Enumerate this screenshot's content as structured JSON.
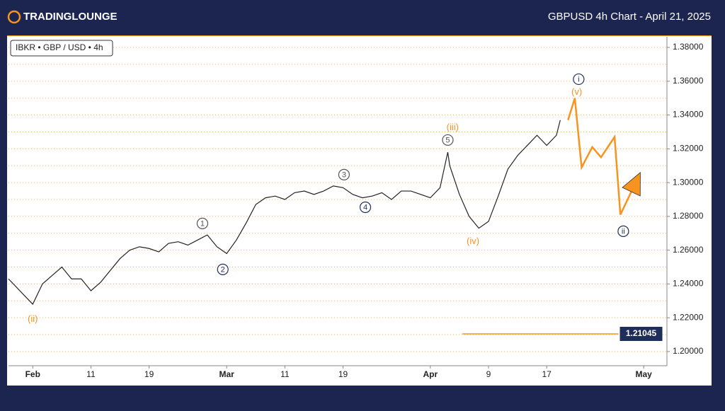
{
  "header": {
    "logo": "TRADINGLOUNGE",
    "title": "GBPUSD 4h Chart - April 21, 2025"
  },
  "chart_data": {
    "type": "line",
    "legend_text": "IBKR • GBP / USD • 4h",
    "xlim": [
      -2.5,
      65.4
    ],
    "ylim": [
      1.1916,
      1.3863
    ],
    "xticks": [
      {
        "value": 0,
        "label": "Feb"
      },
      {
        "value": 6,
        "label": "11"
      },
      {
        "value": 12,
        "label": "19"
      },
      {
        "value": 20,
        "label": "Mar"
      },
      {
        "value": 26,
        "label": "11"
      },
      {
        "value": 32,
        "label": "19"
      },
      {
        "value": 41,
        "label": "Apr"
      },
      {
        "value": 47,
        "label": "9"
      },
      {
        "value": 53,
        "label": "17"
      },
      {
        "value": 63,
        "label": "May"
      }
    ],
    "yticks": [
      {
        "value": 1.38,
        "label": "1.38000"
      },
      {
        "value": 1.36,
        "label": "1.36000"
      },
      {
        "value": 1.34,
        "label": "1.34000"
      },
      {
        "value": 1.32,
        "label": "1.32000"
      },
      {
        "value": 1.3,
        "label": "1.30000"
      },
      {
        "value": 1.28,
        "label": "1.28000"
      },
      {
        "value": 1.26,
        "label": "1.26000"
      },
      {
        "value": 1.24,
        "label": "1.24000"
      },
      {
        "value": 1.22,
        "label": "1.22000"
      },
      {
        "value": 1.2,
        "label": "1.20000"
      }
    ],
    "gridlines": [
      1.38,
      1.37,
      1.36,
      1.35,
      1.34,
      1.33,
      1.32,
      1.31,
      1.3,
      1.29,
      1.28,
      1.27,
      1.26,
      1.25,
      1.24,
      1.23,
      1.22,
      1.21,
      1.2
    ],
    "grid": true,
    "series": [
      {
        "name": "GBPUSD",
        "color": "#222222",
        "x": [
          -2.5,
          0,
          1,
          2,
          3,
          4,
          5,
          6,
          7,
          8,
          9,
          10,
          11,
          12,
          13,
          14,
          15,
          16,
          17,
          18,
          19,
          20,
          21,
          22,
          23,
          24,
          25,
          26,
          27,
          28,
          29,
          30,
          31,
          32,
          33,
          34,
          35,
          36,
          37,
          38,
          39,
          40,
          41,
          42,
          42.8,
          43,
          44,
          45,
          46,
          47,
          48,
          49,
          50,
          51,
          52,
          53,
          54,
          54.4
        ],
        "values": [
          1.243,
          1.228,
          1.24,
          1.245,
          1.25,
          1.243,
          1.243,
          1.236,
          1.241,
          1.248,
          1.255,
          1.26,
          1.262,
          1.261,
          1.259,
          1.264,
          1.265,
          1.263,
          1.266,
          1.269,
          1.262,
          1.258,
          1.266,
          1.276,
          1.287,
          1.291,
          1.292,
          1.29,
          1.294,
          1.295,
          1.293,
          1.295,
          1.298,
          1.297,
          1.293,
          1.291,
          1.292,
          1.294,
          1.29,
          1.295,
          1.295,
          1.293,
          1.291,
          1.297,
          1.318,
          1.31,
          1.293,
          1.28,
          1.273,
          1.277,
          1.292,
          1.308,
          1.316,
          1.322,
          1.328,
          1.322,
          1.328,
          1.337
        ]
      },
      {
        "name": "projection",
        "color": "#f7931e",
        "x": [
          55.2,
          55.9,
          56.6,
          57.7,
          58.6,
          60.0,
          60.6
        ],
        "values": [
          1.337,
          1.35,
          1.309,
          1.321,
          1.315,
          1.327,
          1.281
        ]
      }
    ],
    "arrow": {
      "x": [
        60.6,
        62.0
      ],
      "values": [
        1.281,
        1.298
      ],
      "color": "#f7931e"
    },
    "level": {
      "value": 1.21045,
      "label": "1.21045",
      "x": [
        44.3,
        60.4
      ],
      "color": "#f7931e"
    },
    "annotations": [
      {
        "text": "(ii)",
        "x": 0,
        "y": 1.2193,
        "color": "#f7931e",
        "circle": false
      },
      {
        "text": "1",
        "x": 17.5,
        "y": 1.2758,
        "color": "#555555",
        "circle": true
      },
      {
        "text": "2",
        "x": 19.6,
        "y": 1.2486,
        "color": "#1f2d5a",
        "circle": true
      },
      {
        "text": "3",
        "x": 32.1,
        "y": 1.3047,
        "color": "#555555",
        "circle": true
      },
      {
        "text": "4",
        "x": 34.3,
        "y": 1.2854,
        "color": "#1f2d5a",
        "circle": true
      },
      {
        "text": "5",
        "x": 42.8,
        "y": 1.3252,
        "color": "#555555",
        "circle": true
      },
      {
        "text": "(iii)",
        "x": 43.3,
        "y": 1.3327,
        "color": "#f7931e",
        "circle": false
      },
      {
        "text": "(iv)",
        "x": 45.4,
        "y": 1.2653,
        "color": "#f7931e",
        "circle": false
      },
      {
        "text": "i",
        "x": 56.3,
        "y": 1.3612,
        "color": "#1f2d5a",
        "circle": true
      },
      {
        "text": "(v)",
        "x": 56.1,
        "y": 1.3536,
        "color": "#f7931e",
        "circle": false
      },
      {
        "text": "ii",
        "x": 60.9,
        "y": 1.2712,
        "color": "#1f2d5a",
        "circle": true
      }
    ]
  }
}
